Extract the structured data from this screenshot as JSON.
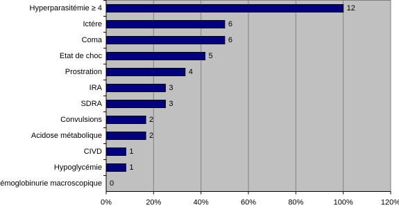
{
  "chart_data": {
    "type": "hbar",
    "categories": [
      "Hyperparasitémie ≥ 4",
      "Ictére",
      "Coma",
      "Etat de choc",
      "Prostration",
      "IRA",
      "SDRA",
      "Convulsions",
      "Acidose métabolique",
      "CIVD",
      "Hypoglycémie",
      "Hémoglobinurie macroscopique"
    ],
    "values": [
      100,
      50,
      50,
      41.7,
      33.3,
      25,
      25,
      16.7,
      16.7,
      8.3,
      8.3,
      0
    ],
    "counts": [
      12,
      6,
      6,
      5,
      4,
      3,
      3,
      2,
      2,
      1,
      1,
      0
    ],
    "color": "#000080",
    "xlim": [
      0,
      120
    ],
    "xticks": [
      {
        "value": 0,
        "label": "0%"
      },
      {
        "value": 20,
        "label": "20%"
      },
      {
        "value": 40,
        "label": "40%"
      },
      {
        "value": 60,
        "label": "60%"
      },
      {
        "value": 80,
        "label": "80%"
      },
      {
        "value": 100,
        "label": "100%"
      },
      {
        "value": 120,
        "label": "120%"
      }
    ],
    "grid": true
  }
}
